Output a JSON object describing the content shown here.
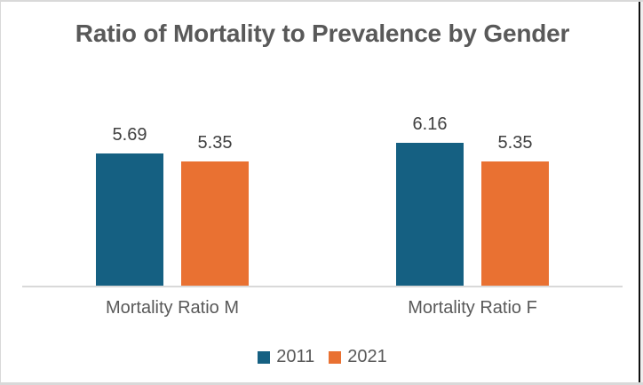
{
  "chart_data": {
    "type": "bar",
    "title": "Ratio of Mortality to Prevalence by Gender",
    "categories": [
      "Mortality Ratio M",
      "Mortality Ratio F"
    ],
    "series": [
      {
        "name": "2011",
        "color": "#156082",
        "values": [
          5.69,
          6.16
        ],
        "labels": [
          "5.69",
          "6.16"
        ]
      },
      {
        "name": "2021",
        "color": "#E97132",
        "values": [
          5.35,
          5.35
        ],
        "labels": [
          "5.35",
          "5.35"
        ]
      }
    ],
    "xlabel": "",
    "ylabel": "",
    "ylim": [
      0,
      7
    ],
    "y_axis_visible": false,
    "grid": false,
    "legend_position": "bottom",
    "legend_entries": [
      "2011",
      "2021"
    ],
    "data_labels_shown": true,
    "colors": {
      "series_2011": "#156082",
      "series_2021": "#E97132",
      "axis_line": "#D9D9D9",
      "title_text": "#595959",
      "label_text": "#404040",
      "category_text": "#595959",
      "frame_border": "#D9D9D9",
      "right_edge_line": "#111111",
      "background": "#FFFFFF"
    }
  }
}
